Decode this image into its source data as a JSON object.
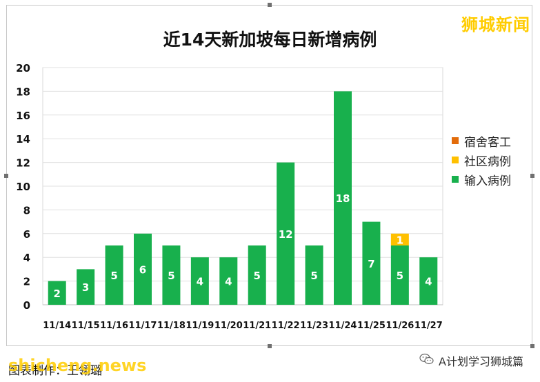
{
  "chart_data": {
    "type": "bar",
    "stacked": true,
    "title": "近14天新加坡每日新增病例",
    "categories": [
      "11/14",
      "11/15",
      "11/16",
      "11/17",
      "11/18",
      "11/19",
      "11/20",
      "11/21",
      "11/22",
      "11/23",
      "11/24",
      "11/25",
      "11/26",
      "11/27"
    ],
    "series": [
      {
        "name": "输入病例",
        "color": "#18b04d",
        "values": [
          2,
          3,
          5,
          6,
          5,
          4,
          4,
          5,
          12,
          5,
          18,
          7,
          5,
          4
        ]
      },
      {
        "name": "社区病例",
        "color": "#ffc000",
        "values": [
          0,
          0,
          0,
          0,
          0,
          0,
          0,
          0,
          0,
          0,
          0,
          0,
          1,
          0
        ]
      },
      {
        "name": "宿舍客工",
        "color": "#e36c0a",
        "values": [
          0,
          0,
          0,
          0,
          0,
          0,
          0,
          0,
          0,
          0,
          0,
          0,
          0,
          0
        ]
      }
    ],
    "ylim": [
      0,
      20
    ],
    "yticks": [
      0,
      2,
      4,
      6,
      8,
      10,
      12,
      14,
      16,
      18,
      20
    ],
    "grid": true,
    "legend_position": "right",
    "legend_order": [
      "宿舍客工",
      "社区病例",
      "输入病例"
    ]
  },
  "watermark": "狮城新闻",
  "footer": {
    "credit": "图表制作：王翎璐",
    "brand": "shicheng.news",
    "account": "A计划学习狮城篇",
    "icon": "wechat-icon"
  }
}
